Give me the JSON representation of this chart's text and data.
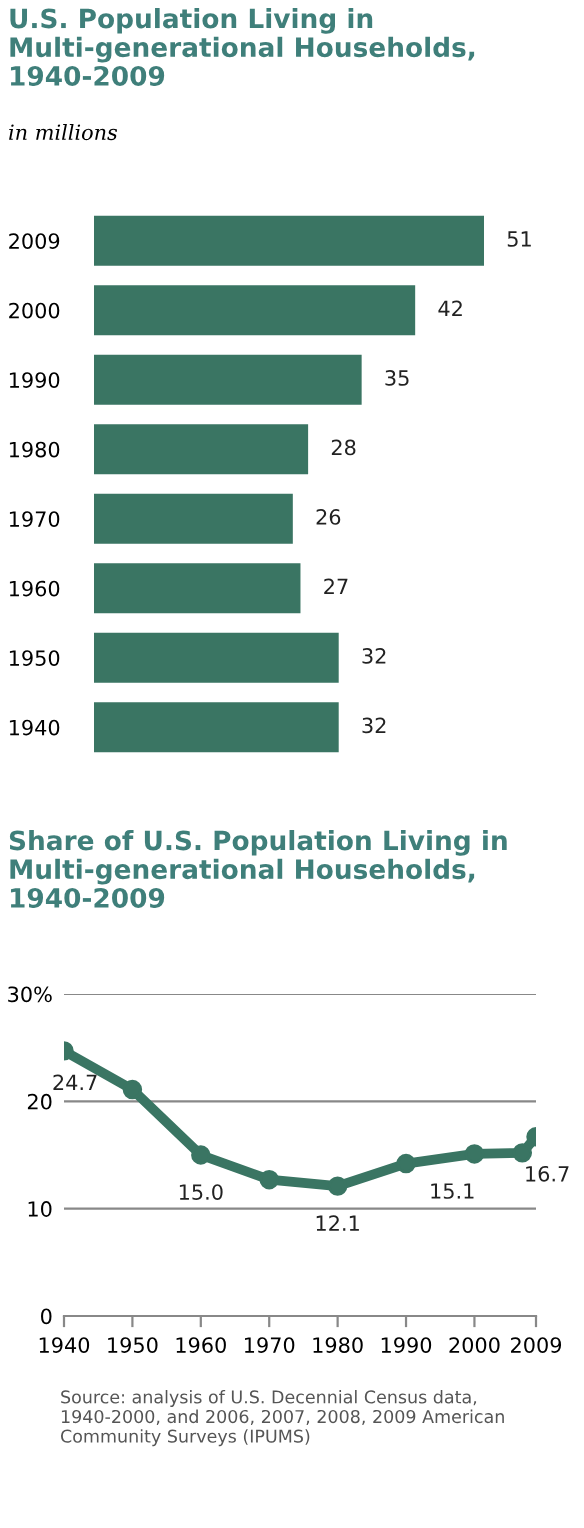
{
  "chart_data": [
    {
      "type": "bar",
      "orientation": "horizontal",
      "title": "U.S. Population Living in Multi-generational Households, 1940-2009",
      "subtitle": "in millions",
      "categories": [
        "2009",
        "2000",
        "1990",
        "1980",
        "1970",
        "1960",
        "1950",
        "1940"
      ],
      "values": [
        51,
        42,
        35,
        28,
        26,
        27,
        32,
        32
      ],
      "color": "#3a7563",
      "data_labels": true
    },
    {
      "type": "line",
      "title": "Share of U.S. Population Living in Multi-generational Households, 1940-2009",
      "x": [
        1940,
        1950,
        1960,
        1970,
        1980,
        1990,
        2000,
        2007,
        2009
      ],
      "series": [
        {
          "color": "#3a7563",
          "values": [
            24.7,
            21.1,
            15.0,
            12.7,
            12.1,
            14.2,
            15.1,
            15.2,
            16.7
          ],
          "value_labels": [
            "24.7",
            null,
            "15.0",
            null,
            "12.1",
            null,
            "15.1",
            null,
            "16.7"
          ]
        }
      ],
      "xlim": [
        1940,
        2009
      ],
      "xticks": [
        1940,
        1950,
        1960,
        1970,
        1980,
        1990,
        2000,
        2009
      ],
      "ylim": [
        0,
        30
      ],
      "yticks": [
        0,
        10,
        20,
        {
          "value": 30,
          "label": "30%"
        }
      ],
      "grid": "y",
      "marker": "circle",
      "line_style": "solid",
      "annotations": [
        "Source: analysis of U.S. Decennial Census data, 1940-2000, and 2006, 2007, 2008, 2009 American Community Surveys (IPUMS)"
      ]
    }
  ]
}
